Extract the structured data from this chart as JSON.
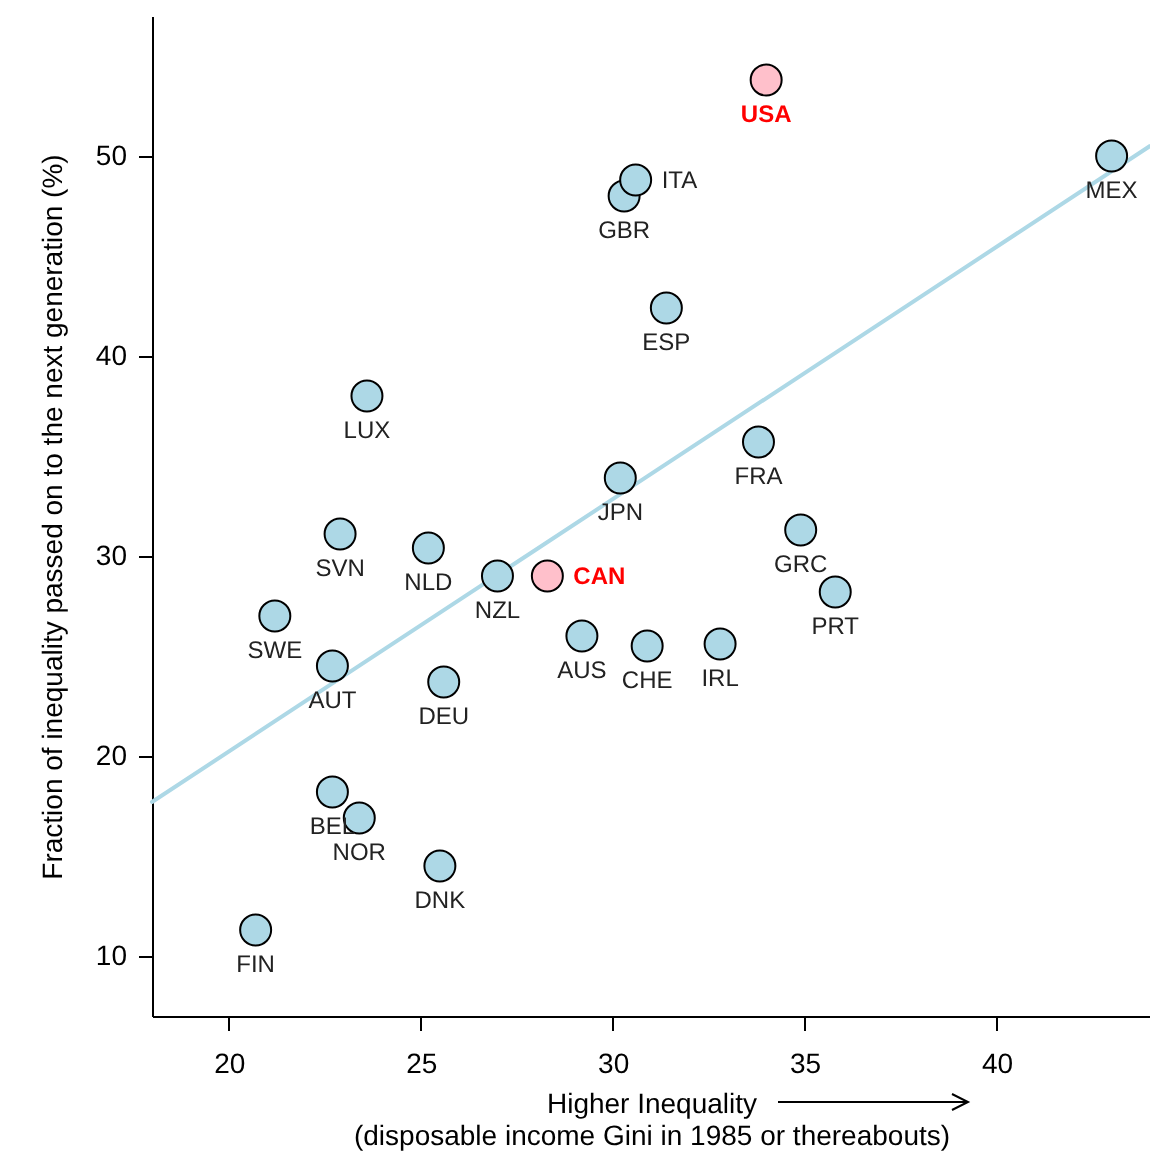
{
  "chart_data": {
    "type": "scatter",
    "xlabel": "Higher Inequality\n(disposable income Gini in 1985 or thereabouts)",
    "ylabel": "Fraction of inequality passed on to the next generation (%)",
    "xlim": [
      18,
      44
    ],
    "ylim": [
      7,
      57
    ],
    "xticks": [
      20,
      25,
      30,
      35,
      40
    ],
    "yticks": [
      10,
      20,
      30,
      40,
      50
    ],
    "grid": false,
    "marker": "circle",
    "series": [
      {
        "color": "#add8e6",
        "x": [
          30.3,
          30.6,
          43.0,
          31.4,
          23.6,
          33.8,
          30.2,
          22.9,
          25.2,
          34.9,
          27.0,
          35.8,
          21.2,
          29.2,
          30.9,
          32.8,
          22.7,
          25.6,
          22.7,
          23.4,
          25.5,
          20.7
        ],
        "values": [
          48.0,
          48.8,
          50.0,
          42.4,
          38.0,
          35.7,
          33.9,
          31.1,
          30.4,
          31.3,
          29.0,
          28.2,
          27.0,
          26.0,
          25.5,
          25.6,
          24.5,
          23.7,
          18.2,
          16.9,
          14.5,
          11.3
        ],
        "value_labels": [
          "GBR",
          "ITA",
          "MEX",
          "ESP",
          "LUX",
          "FRA",
          "JPN",
          "SVN",
          "NLD",
          "GRC",
          "NZL",
          "PRT",
          "SWE",
          "AUS",
          "CHE",
          "IRL",
          "AUT",
          "DEU",
          "BEL",
          "NOR",
          "DNK",
          "FIN"
        ]
      },
      {
        "color": "#ffc0cb",
        "x": [
          34.0,
          28.3
        ],
        "values": [
          53.8,
          29.0
        ],
        "value_labels": [
          "USA",
          "CAN"
        ]
      },
      {
        "type": "line",
        "marker": "none",
        "color": "#add8e6",
        "x": [
          18,
          44
        ],
        "values": [
          17.7,
          50.5
        ]
      }
    ]
  }
}
